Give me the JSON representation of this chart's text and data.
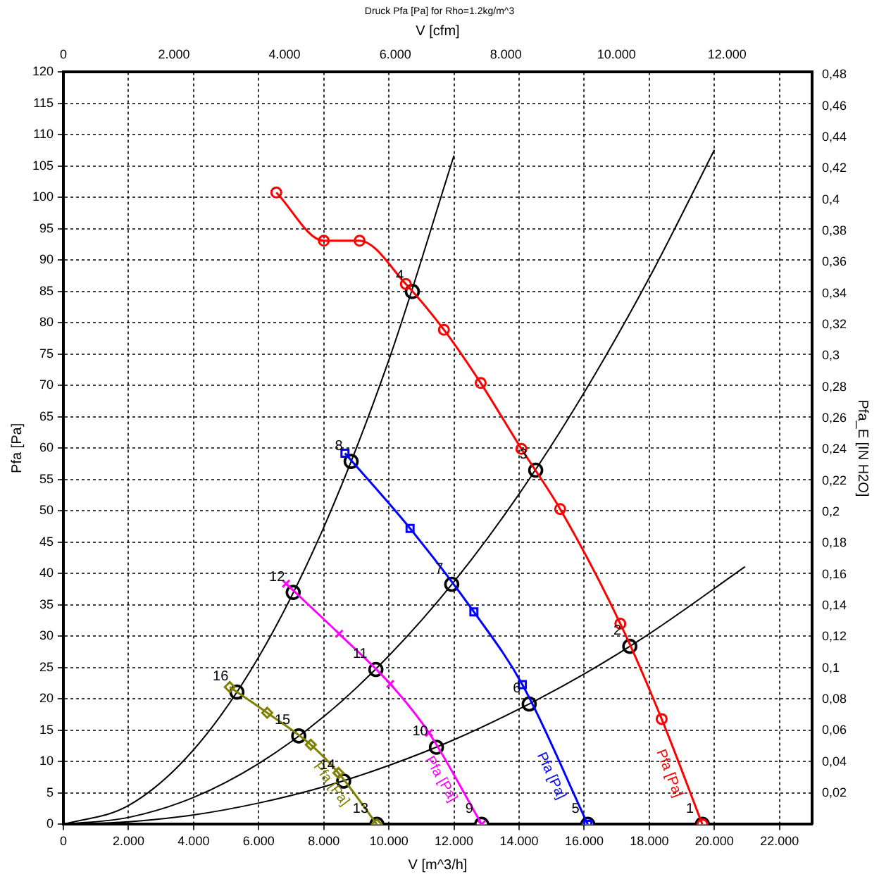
{
  "chart_data": {
    "type": "line",
    "title": "Druck Pfa [Pa] for Rho=1.2kg/m^3",
    "xlabel": "V [m^3/h]",
    "x2label": "V [cfm]",
    "ylabel": "Pfa [Pa]",
    "y2label": "Pfa_E [IN H2O]",
    "xlim": [
      0,
      23000
    ],
    "xticks": [
      {
        "value": 0,
        "label": "0"
      },
      {
        "value": 2000,
        "label": "2.000"
      },
      {
        "value": 4000,
        "label": "4.000"
      },
      {
        "value": 6000,
        "label": "6.000"
      },
      {
        "value": 8000,
        "label": "8.000"
      },
      {
        "value": 10000,
        "label": "10.000"
      },
      {
        "value": 12000,
        "label": "12.000"
      },
      {
        "value": 14000,
        "label": "14.000"
      },
      {
        "value": 16000,
        "label": "16.000"
      },
      {
        "value": 18000,
        "label": "18.000"
      },
      {
        "value": 20000,
        "label": "20.000"
      },
      {
        "value": 22000,
        "label": "22.000"
      }
    ],
    "x2lim": [
      0,
      13537
    ],
    "x2ticks": [
      {
        "value": 0,
        "label": "0"
      },
      {
        "value": 2000,
        "label": "2.000"
      },
      {
        "value": 4000,
        "label": "4.000"
      },
      {
        "value": 6000,
        "label": "6.000"
      },
      {
        "value": 8000,
        "label": "8.000"
      },
      {
        "value": 10000,
        "label": "10.000"
      },
      {
        "value": 12000,
        "label": "12.000"
      }
    ],
    "ylim": [
      0,
      120
    ],
    "yticks": [
      0,
      5,
      10,
      15,
      20,
      25,
      30,
      35,
      40,
      45,
      50,
      55,
      60,
      65,
      70,
      75,
      80,
      85,
      90,
      95,
      100,
      105,
      110,
      115,
      120
    ],
    "y2lim": [
      0,
      0.4818
    ],
    "y2ticks": [
      {
        "value": 0.02,
        "label": "0,02"
      },
      {
        "value": 0.04,
        "label": "0,04"
      },
      {
        "value": 0.06,
        "label": "0,06"
      },
      {
        "value": 0.08,
        "label": "0,08"
      },
      {
        "value": 0.1,
        "label": "0,1"
      },
      {
        "value": 0.12,
        "label": "0,12"
      },
      {
        "value": 0.14,
        "label": "0,14"
      },
      {
        "value": 0.16,
        "label": "0,16"
      },
      {
        "value": 0.18,
        "label": "0,18"
      },
      {
        "value": 0.2,
        "label": "0,2"
      },
      {
        "value": 0.22,
        "label": "0,22"
      },
      {
        "value": 0.24,
        "label": "0,24"
      },
      {
        "value": 0.26,
        "label": "0,26"
      },
      {
        "value": 0.28,
        "label": "0,28"
      },
      {
        "value": 0.3,
        "label": "0,3"
      },
      {
        "value": 0.32,
        "label": "0,32"
      },
      {
        "value": 0.34,
        "label": "0,34"
      },
      {
        "value": 0.36,
        "label": "0,36"
      },
      {
        "value": 0.38,
        "label": "0,38"
      },
      {
        "value": 0.4,
        "label": "0,4"
      },
      {
        "value": 0.42,
        "label": "0,42"
      },
      {
        "value": 0.44,
        "label": "0,44"
      },
      {
        "value": 0.46,
        "label": "0,46"
      },
      {
        "value": 0.48,
        "label": "0,48"
      }
    ],
    "grid": true,
    "legend": false,
    "line_style": "solid",
    "series": [
      {
        "name": "Pfa [Pa]",
        "color": "#ff0000",
        "marker": "circle",
        "x": [
          6540,
          8000,
          9100,
          10520,
          11690,
          12820,
          14070,
          15260,
          17110,
          18380,
          19630
        ],
        "values": [
          100.8,
          93.1,
          93.1,
          86.2,
          78.9,
          70.4,
          59.9,
          50.3,
          32.0,
          16.8,
          0
        ]
      },
      {
        "name": "Pfa [Pa]",
        "color": "#0000ff",
        "marker": "square",
        "x": [
          8650,
          10650,
          12610,
          14100,
          16110
        ],
        "values": [
          59.2,
          47.2,
          33.9,
          22.3,
          0
        ]
      },
      {
        "name": "Pfa [Pa]",
        "color": "#ff00ff",
        "marker": "cross",
        "x": [
          6840,
          8470,
          10040,
          11230,
          12850
        ],
        "values": [
          38.4,
          30.4,
          22.4,
          14.6,
          0
        ]
      },
      {
        "name": "Pfa [Pa]",
        "color": "#808000",
        "marker": "diamond",
        "x": [
          5110,
          6260,
          7600,
          8450,
          9630
        ],
        "values": [
          21.9,
          17.8,
          12.7,
          8.2,
          0
        ]
      },
      {
        "color": "#000000",
        "marker": "none",
        "x": [
          0,
          2000,
          4000,
          6000,
          8000,
          10000,
          12000
        ],
        "values": [
          0,
          3.0,
          11.9,
          26.7,
          47.4,
          74.1,
          106.7
        ]
      },
      {
        "color": "#000000",
        "marker": "none",
        "x": [
          0,
          2000,
          4000,
          6000,
          8000,
          10000,
          12000,
          14000,
          16000,
          18000,
          20000
        ],
        "values": [
          0,
          1.1,
          4.3,
          9.7,
          17.2,
          26.9,
          38.7,
          52.7,
          68.9,
          87.2,
          107.6
        ]
      },
      {
        "color": "#000000",
        "marker": "none",
        "x": [
          0,
          2000,
          4000,
          6000,
          8000,
          10000,
          12000,
          14000,
          16000,
          18000,
          20940
        ],
        "values": [
          0,
          0.4,
          1.5,
          3.4,
          6.0,
          9.4,
          13.5,
          18.4,
          24.0,
          30.4,
          41.1
        ]
      },
      {
        "type": "scatter",
        "color": "#000000",
        "marker": "circle",
        "x": [
          19630,
          17400,
          14510,
          10720,
          16110,
          14310,
          11930,
          8840,
          12850,
          11460,
          9600,
          7060,
          9630,
          8610,
          7230,
          5330
        ],
        "values": [
          0,
          28.4,
          56.5,
          85.0,
          0,
          19.2,
          38.3,
          57.9,
          0,
          12.3,
          24.7,
          37.0,
          0,
          6.9,
          14.1,
          21.1
        ]
      }
    ],
    "annotations": [
      {
        "text": "1",
        "x": 19630,
        "y": 0
      },
      {
        "text": "2",
        "x": 17400,
        "y": 28.4
      },
      {
        "text": "3",
        "x": 14510,
        "y": 56.5
      },
      {
        "text": "4",
        "x": 10720,
        "y": 85.0
      },
      {
        "text": "5",
        "x": 16110,
        "y": 0
      },
      {
        "text": "6",
        "x": 14310,
        "y": 19.2
      },
      {
        "text": "7",
        "x": 11930,
        "y": 38.3
      },
      {
        "text": "8",
        "x": 8840,
        "y": 57.9
      },
      {
        "text": "9",
        "x": 12850,
        "y": 0
      },
      {
        "text": "10",
        "x": 11460,
        "y": 12.3
      },
      {
        "text": "11",
        "x": 9600,
        "y": 24.7
      },
      {
        "text": "12",
        "x": 7060,
        "y": 37.0
      },
      {
        "text": "13",
        "x": 9630,
        "y": 0
      },
      {
        "text": "14",
        "x": 8610,
        "y": 6.9
      },
      {
        "text": "15",
        "x": 7230,
        "y": 14.1
      },
      {
        "text": "16",
        "x": 5330,
        "y": 21.1
      }
    ]
  }
}
